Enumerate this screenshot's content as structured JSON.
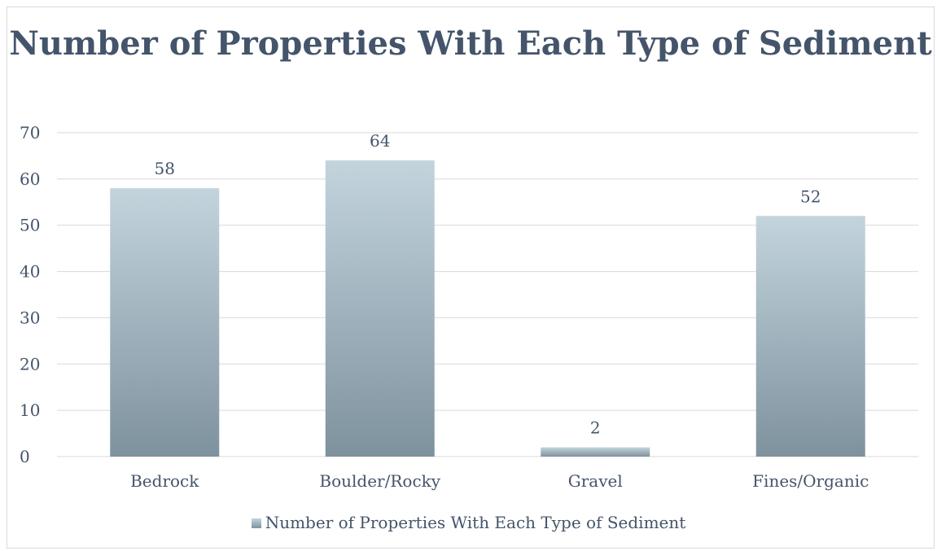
{
  "chart_data": {
    "type": "bar",
    "title": "Number of Properties With Each Type of Sediment",
    "categories": [
      "Bedrock",
      "Boulder/Rocky",
      "Gravel",
      "Fines/Organic"
    ],
    "series": [
      {
        "name": "Number of Properties With Each Type of Sediment",
        "values": [
          58,
          64,
          2,
          52
        ]
      }
    ],
    "ylim": [
      0,
      70
    ],
    "yticks": [
      0,
      10,
      20,
      30,
      40,
      50,
      60,
      70
    ],
    "grid": true,
    "legend": "bottom",
    "data_labels": true,
    "colors": {
      "bar_top": "#c3d4dd",
      "bar_bottom": "#7e929e",
      "title": "#44546a",
      "text": "#44546a",
      "grid": "#d9d9d9"
    }
  }
}
